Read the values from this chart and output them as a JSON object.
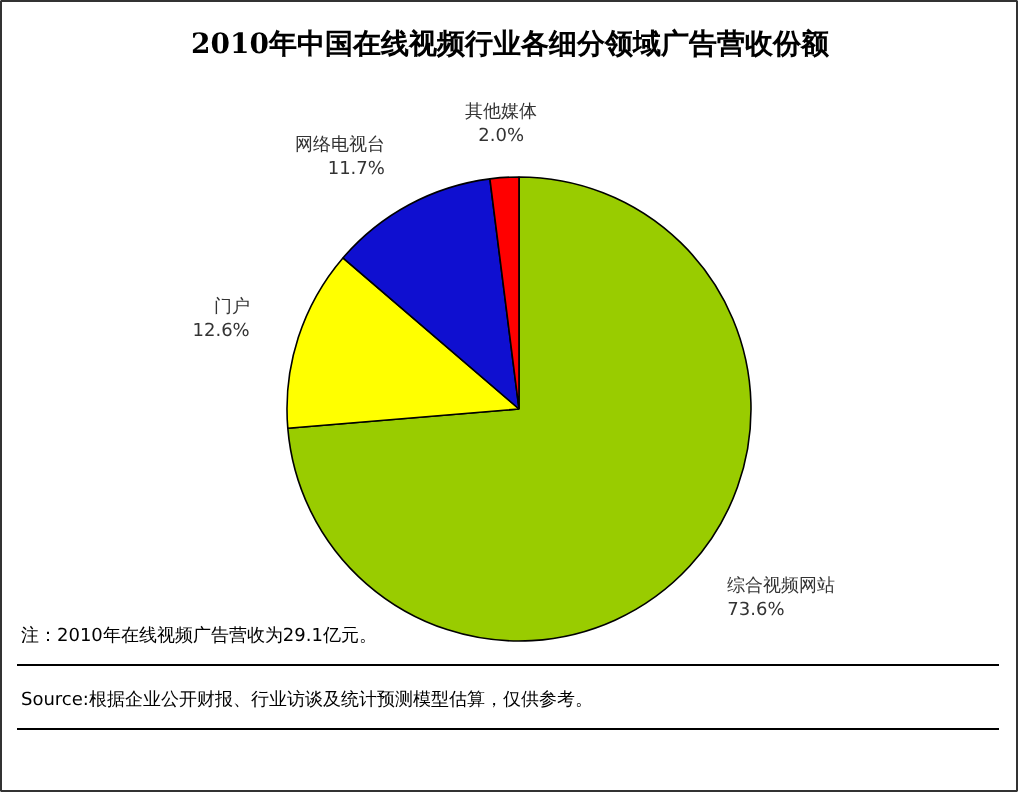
{
  "chart_data": {
    "type": "pie",
    "title": "2010年中国在线视频行业各细分领域广告营收份额",
    "categories": [
      "综合视频网站",
      "门户",
      "网络电视台",
      "其他媒体"
    ],
    "values": [
      73.6,
      12.6,
      11.7,
      2.0
    ],
    "colors": [
      "#99cc00",
      "#ffff00",
      "#0f0fd0",
      "#ff0000"
    ],
    "value_labels": [
      "73.6%",
      "12.6%",
      "11.7%",
      "2.0%"
    ],
    "annotations": [
      "注：2010年在线视频广告营收为29.1亿元。",
      "Source:根据企业公开财报、行业访谈及统计预测模型估算，仅供参考。"
    ]
  }
}
